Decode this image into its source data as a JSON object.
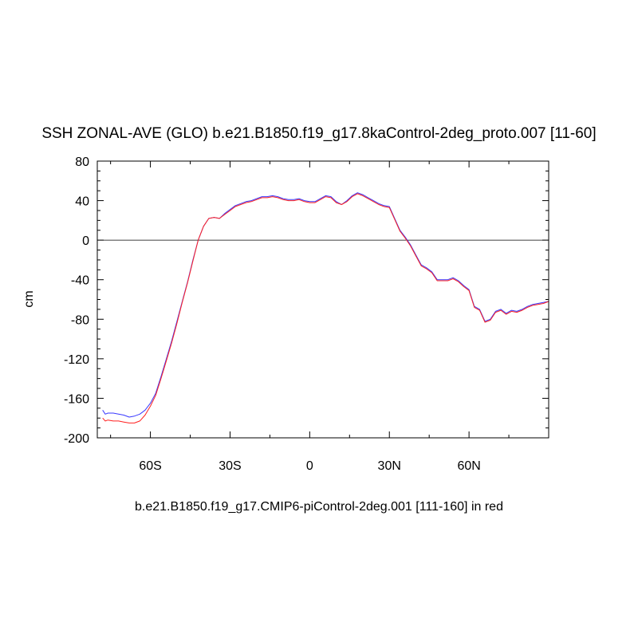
{
  "chart_data": {
    "type": "line",
    "title": "SSH ZONAL-AVE (GLO) b.e21.B1850.f19_g17.8kaControl-2deg_proto.007 [11-60]",
    "subtitle": "b.e21.B1850.f19_g17.CMIP6-piControl-2deg.001 [111-160] in red",
    "ylabel": "cm",
    "xlim": [
      -80,
      90
    ],
    "ylim": [
      -200,
      80
    ],
    "yticks": [
      80,
      40,
      0,
      -40,
      -80,
      -120,
      -160,
      -200
    ],
    "yticks_text": [
      "80",
      "40",
      "0",
      "-40",
      "-80",
      "-120",
      "-160",
      "-200"
    ],
    "xticks": [
      -60,
      -30,
      0,
      30,
      60
    ],
    "xticks_text": [
      "60S",
      "30S",
      "0",
      "30N",
      "60N"
    ],
    "reference_line_y": 0,
    "series": [
      {
        "color": "#3a3aff",
        "x": [
          -78,
          -77,
          -76,
          -74,
          -72,
          -70,
          -68,
          -66,
          -64,
          -62,
          -60,
          -58,
          -56,
          -54,
          -52,
          -50,
          -48,
          -46,
          -44,
          -42,
          -40,
          -38,
          -36,
          -34,
          -32,
          -30,
          -28,
          -26,
          -24,
          -22,
          -20,
          -18,
          -16,
          -14,
          -12,
          -10,
          -8,
          -6,
          -4,
          -2,
          0,
          2,
          4,
          6,
          8,
          10,
          12,
          14,
          16,
          18,
          20,
          22,
          24,
          26,
          28,
          30,
          32,
          34,
          36,
          38,
          40,
          42,
          44,
          46,
          48,
          50,
          52,
          54,
          56,
          58,
          60,
          62,
          64,
          66,
          68,
          70,
          72,
          74,
          76,
          78,
          80,
          82,
          84,
          86,
          88,
          90
        ],
        "y": [
          -172,
          -176,
          -175,
          -175,
          -176,
          -177,
          -179,
          -178,
          -176,
          -172,
          -165,
          -155,
          -138,
          -120,
          -102,
          -82,
          -62,
          -42,
          -20,
          0,
          14,
          22,
          23,
          22,
          27,
          31,
          35,
          37,
          39,
          40,
          42,
          44,
          44,
          45,
          44,
          42,
          41,
          41,
          42,
          40,
          39,
          39,
          42,
          45,
          44,
          39,
          36,
          40,
          45,
          48,
          46,
          43,
          40,
          37,
          35,
          34,
          22,
          10,
          3,
          -5,
          -15,
          -25,
          -28,
          -32,
          -40,
          -40,
          -40,
          -38,
          -41,
          -46,
          -50,
          -67,
          -70,
          -82,
          -80,
          -72,
          -70,
          -74,
          -71,
          -72,
          -70,
          -67,
          -65,
          -64,
          -63,
          -62
        ]
      },
      {
        "color": "#ff2020",
        "x": [
          -78,
          -77,
          -76,
          -74,
          -72,
          -70,
          -68,
          -66,
          -64,
          -62,
          -60,
          -58,
          -56,
          -54,
          -52,
          -50,
          -48,
          -46,
          -44,
          -42,
          -40,
          -38,
          -36,
          -34,
          -32,
          -30,
          -28,
          -26,
          -24,
          -22,
          -20,
          -18,
          -16,
          -14,
          -12,
          -10,
          -8,
          -6,
          -4,
          -2,
          0,
          2,
          4,
          6,
          8,
          10,
          12,
          14,
          16,
          18,
          20,
          22,
          24,
          26,
          28,
          30,
          32,
          34,
          36,
          38,
          40,
          42,
          44,
          46,
          48,
          50,
          52,
          54,
          56,
          58,
          60,
          62,
          64,
          66,
          68,
          70,
          72,
          74,
          76,
          78,
          80,
          82,
          84,
          86,
          88,
          90
        ],
        "y": [
          -180,
          -183,
          -182,
          -183,
          -183,
          -184,
          -185,
          -185,
          -183,
          -177,
          -168,
          -157,
          -140,
          -122,
          -104,
          -84,
          -63,
          -43,
          -21,
          0,
          14,
          22,
          23,
          22,
          26,
          30,
          34,
          36,
          38,
          39,
          41,
          43,
          43,
          44,
          43,
          41,
          40,
          40,
          41,
          39,
          38,
          38,
          41,
          44,
          43,
          38,
          36,
          39,
          44,
          47,
          45,
          42,
          39,
          36,
          34,
          33,
          21,
          9,
          2,
          -6,
          -16,
          -26,
          -29,
          -33,
          -41,
          -41,
          -41,
          -39,
          -42,
          -47,
          -51,
          -68,
          -71,
          -83,
          -81,
          -73,
          -71,
          -75,
          -72,
          -73,
          -71,
          -68,
          -66,
          -65,
          -64,
          -62
        ]
      }
    ]
  }
}
